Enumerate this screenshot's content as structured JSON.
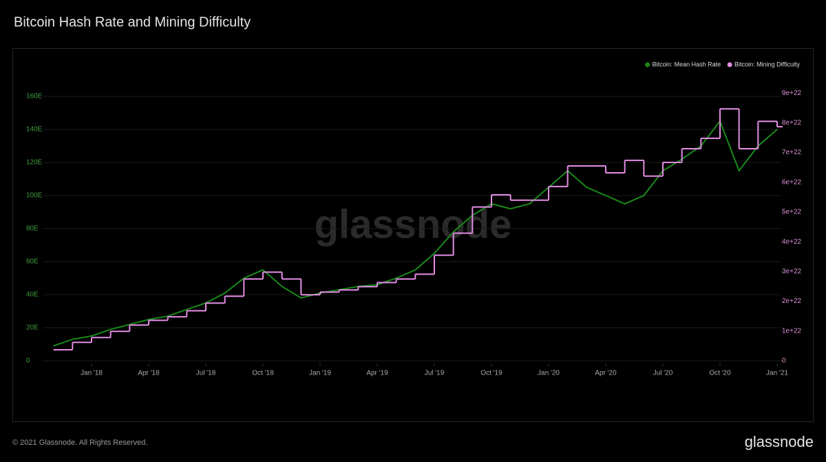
{
  "chart_data": {
    "type": "line",
    "title": "Bitcoin Hash Rate and Mining Difficulty",
    "x": [
      "2017-11",
      "2017-12",
      "2018-01",
      "2018-02",
      "2018-03",
      "2018-04",
      "2018-05",
      "2018-06",
      "2018-07",
      "2018-08",
      "2018-09",
      "2018-10",
      "2018-11",
      "2018-12",
      "2019-01",
      "2019-02",
      "2019-03",
      "2019-04",
      "2019-05",
      "2019-06",
      "2019-07",
      "2019-08",
      "2019-09",
      "2019-10",
      "2019-11",
      "2019-12",
      "2020-01",
      "2020-02",
      "2020-03",
      "2020-04",
      "2020-05",
      "2020-06",
      "2020-07",
      "2020-08",
      "2020-09",
      "2020-10",
      "2020-11",
      "2020-12",
      "2021-01"
    ],
    "series": [
      {
        "name": "Bitcoin: Mean Hash Rate",
        "color": "#1a8a1a",
        "values": [
          9,
          13,
          15,
          19,
          22,
          25,
          27,
          31,
          35,
          41,
          50,
          55,
          45,
          38,
          41,
          43,
          45,
          46,
          50,
          55,
          65,
          78,
          88,
          95,
          92,
          95,
          105,
          115,
          105,
          100,
          95,
          100,
          115,
          122,
          130,
          145,
          115,
          130,
          140
        ]
      },
      {
        "name": "Bitcoin: Mining Difficulty",
        "color": "#e58ee5",
        "axis": "y2",
        "step": true,
        "values": [
          3.7e+21,
          6.2e+21,
          7.8e+21,
          9.9e+21,
          1.2e+22,
          1.36e+22,
          1.48e+22,
          1.68e+22,
          1.94e+22,
          2.17e+22,
          2.75e+22,
          2.98e+22,
          2.75e+22,
          2.22e+22,
          2.31e+22,
          2.38e+22,
          2.49e+22,
          2.63e+22,
          2.75e+22,
          2.91e+22,
          3.55e+22,
          4.29e+22,
          5.17e+22,
          5.58e+22,
          5.4e+22,
          5.4e+22,
          5.86e+22,
          6.55e+22,
          6.55e+22,
          6.32e+22,
          6.74e+22,
          6.21e+22,
          6.67e+22,
          7.13e+22,
          7.48e+22,
          8.47e+22,
          7.13e+22,
          8.05e+22,
          7.87e+22
        ]
      }
    ],
    "xlim": [
      "2017-10",
      "2021-01"
    ],
    "xticks": [
      {
        "value": "2018-01",
        "label": "Jan '18"
      },
      {
        "value": "2018-04",
        "label": "Apr '18"
      },
      {
        "value": "2018-07",
        "label": "Jul '18"
      },
      {
        "value": "2018-10",
        "label": "Oct '18"
      },
      {
        "value": "2019-01",
        "label": "Jan '19"
      },
      {
        "value": "2019-04",
        "label": "Apr '19"
      },
      {
        "value": "2019-07",
        "label": "Jul '19"
      },
      {
        "value": "2019-10",
        "label": "Oct '19"
      },
      {
        "value": "2020-01",
        "label": "Jan '20"
      },
      {
        "value": "2020-04",
        "label": "Apr '20"
      },
      {
        "value": "2020-07",
        "label": "Jul '20"
      },
      {
        "value": "2020-10",
        "label": "Oct '20"
      },
      {
        "value": "2021-01",
        "label": "Jan '21"
      }
    ],
    "ylim": [
      0,
      180
    ],
    "yticks": [
      0,
      {
        "value": 20,
        "label": "20E"
      },
      {
        "value": 40,
        "label": "40E"
      },
      {
        "value": 60,
        "label": "60E"
      },
      {
        "value": 80,
        "label": "80E"
      },
      {
        "value": 100,
        "label": "100E"
      },
      {
        "value": 120,
        "label": "120E"
      },
      {
        "value": 140,
        "label": "140E"
      },
      {
        "value": 160,
        "label": "160E"
      }
    ],
    "y2lim": [
      0,
      1e+23
    ],
    "y2ticks": [
      0,
      {
        "value": 1e+22,
        "label": "1e+22"
      },
      {
        "value": 2e+22,
        "label": "2e+22"
      },
      {
        "value": 3e+22,
        "label": "3e+22"
      },
      {
        "value": 4e+22,
        "label": "4e+22"
      },
      {
        "value": 5e+22,
        "label": "5e+22"
      },
      {
        "value": 6e+22,
        "label": "6e+22"
      },
      {
        "value": 7e+22,
        "label": "7e+22"
      },
      {
        "value": 8e+22,
        "label": "8e+22"
      },
      {
        "value": 9e+22,
        "label": "9e+22"
      }
    ],
    "grid": true,
    "legend": "top-right"
  },
  "brand": "glassnode",
  "copyright": "© 2021 Glassnode. All Rights Reserved."
}
